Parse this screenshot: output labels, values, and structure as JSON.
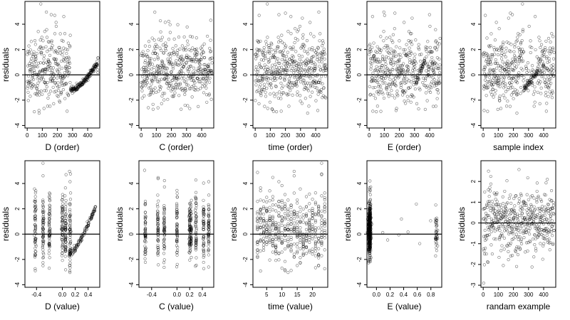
{
  "chart_data": [
    {
      "type": "scatter",
      "title": "",
      "xlabel": "D (order)",
      "ylabel": "residuals",
      "xlim": [
        -15,
        480
      ],
      "ylim": [
        -4.2,
        5.8
      ],
      "xticks": [
        0,
        100,
        200,
        300,
        400
      ],
      "yticks": [
        -4,
        -2,
        0,
        2,
        4
      ],
      "hline": 0,
      "points_shown": 470
    },
    {
      "type": "scatter",
      "title": "",
      "xlabel": "C (order)",
      "ylabel": "residuals",
      "xlim": [
        -15,
        480
      ],
      "ylim": [
        -4.2,
        5.8
      ],
      "xticks": [
        0,
        100,
        200,
        300,
        400
      ],
      "yticks": [
        -4,
        -2,
        0,
        2,
        4
      ],
      "hline": 0,
      "points_shown": 470
    },
    {
      "type": "scatter",
      "title": "",
      "xlabel": "time (order)",
      "ylabel": "residuals",
      "xlim": [
        -15,
        480
      ],
      "ylim": [
        -4.2,
        5.8
      ],
      "xticks": [
        0,
        100,
        200,
        300,
        400
      ],
      "yticks": [
        -4,
        -2,
        0,
        2,
        4
      ],
      "hline": 0,
      "points_shown": 470
    },
    {
      "type": "scatter",
      "title": "",
      "xlabel": "E (order)",
      "ylabel": "residuals",
      "xlim": [
        -15,
        480
      ],
      "ylim": [
        -4.2,
        5.8
      ],
      "xticks": [
        0,
        100,
        200,
        300,
        400
      ],
      "yticks": [
        -4,
        -2,
        0,
        2,
        4
      ],
      "hline": 0,
      "points_shown": 470
    },
    {
      "type": "scatter",
      "title": "",
      "xlabel": "sample index",
      "ylabel": "residuals",
      "xlim": [
        -15,
        480
      ],
      "ylim": [
        -4.2,
        5.8
      ],
      "xticks": [
        0,
        100,
        200,
        300,
        400
      ],
      "yticks": [
        -4,
        -2,
        0,
        2,
        4
      ],
      "hline": 0,
      "points_shown": 470
    },
    {
      "type": "scatter",
      "title": "",
      "xlabel": "D (value)",
      "ylabel": "residuals",
      "xlim": [
        -0.58,
        0.58
      ],
      "ylim": [
        -4.2,
        5.8
      ],
      "xticks": [
        -0.4,
        0.0,
        0.2,
        0.4
      ],
      "xtick_labels": [
        "-0.4",
        "0.0",
        "0.2",
        "0.4"
      ],
      "yticks": [
        -4,
        -2,
        0,
        2,
        4
      ],
      "hline": 0,
      "points_shown": 470
    },
    {
      "type": "scatter",
      "title": "",
      "xlabel": "C (value)",
      "ylabel": "residuals",
      "xlim": [
        -0.6,
        0.58
      ],
      "ylim": [
        -4.2,
        5.8
      ],
      "xticks": [
        -0.4,
        0.0,
        0.2,
        0.4
      ],
      "xtick_labels": [
        "-0.4",
        "0.0",
        "0.2",
        "0.4"
      ],
      "yticks": [
        -4,
        -2,
        0,
        2,
        4
      ],
      "hline": 0,
      "points_shown": 470
    },
    {
      "type": "scatter",
      "title": "",
      "xlabel": "time (value)",
      "ylabel": "residuals",
      "xlim": [
        0.5,
        25
      ],
      "ylim": [
        -4.2,
        5.8
      ],
      "xticks": [
        5,
        10,
        15,
        20
      ],
      "yticks": [
        -4,
        -2,
        0,
        2,
        4
      ],
      "hline": 0,
      "points_shown": 470
    },
    {
      "type": "scatter",
      "title": "",
      "xlabel": "E (value)",
      "ylabel": "residuals",
      "xlim": [
        -0.14,
        0.96
      ],
      "ylim": [
        -4.2,
        5.8
      ],
      "xticks": [
        0.0,
        0.2,
        0.4,
        0.6,
        0.8
      ],
      "xtick_labels": [
        "0.0",
        "0.2",
        "0.4",
        "0.6",
        "0.8"
      ],
      "yticks": [
        -4,
        -2,
        0,
        2,
        4
      ],
      "hline": 0,
      "points_shown": 470
    },
    {
      "type": "scatter",
      "title": "",
      "xlabel": "randam example",
      "ylabel": "residuals",
      "xlim": [
        -15,
        480
      ],
      "ylim": [
        -3.1,
        3.0
      ],
      "xticks": [
        0,
        100,
        200,
        300,
        400
      ],
      "yticks": [
        -3,
        -2,
        -1,
        0,
        1,
        2
      ],
      "hline": 0,
      "points_shown": 470
    }
  ]
}
